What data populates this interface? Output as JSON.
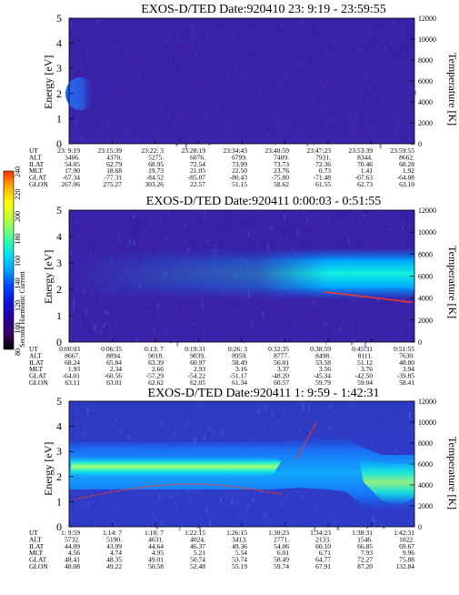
{
  "colorbar": {
    "label": "Second Harmonic Current",
    "ticks": [
      "80",
      "100",
      "120",
      "140",
      "160",
      "180",
      "200",
      "220",
      "240"
    ],
    "colors": [
      "#000000",
      "#3a0060",
      "#2a0098",
      "#1010d0",
      "#0040ff",
      "#00a0ff",
      "#00e0f0",
      "#40ffa0",
      "#b0ff40",
      "#ffff00",
      "#ffb000",
      "#ff3000"
    ]
  },
  "chart_data": [
    {
      "type": "heatmap",
      "title": "EXOS-D/TED   Date:920410  23: 9:19 - 23:59:55",
      "ylabel": "Energy [eV]",
      "y2label": "Temperature [K]",
      "ylim": [
        0,
        5
      ],
      "y2lim": [
        0,
        12000
      ],
      "yticks": [
        "0",
        "1",
        "2",
        "3",
        "4",
        "5"
      ],
      "y2ticks": [
        "0",
        "2000",
        "4000",
        "6000",
        "8000",
        "10000",
        "12000"
      ],
      "row_labels": [
        "UT",
        "ALT",
        "ILAT",
        "MLT",
        "GLAT",
        "GLON"
      ],
      "columns": [
        [
          "23: 9:19",
          "3406.",
          "54.05",
          "17.90",
          "-67.34",
          "267.06"
        ],
        [
          "23:15:39",
          "4370.",
          "62.79",
          "18.68",
          "-77.31",
          "275.27"
        ],
        [
          "23:22: 3",
          "5275.",
          "68.95",
          "19.73",
          "-84.52",
          "303.26"
        ],
        [
          "23:28:19",
          "6076.",
          "72.54",
          "21.05",
          "-85.07",
          "22.57"
        ],
        [
          "23:34:43",
          "6799.",
          "73.99",
          "22.50",
          "-80.43",
          "51.15"
        ],
        [
          "23:40:59",
          "7409.",
          "73.73",
          "23.76",
          "-75.80",
          "58.62"
        ],
        [
          "23:47:23",
          "7931.",
          "72.36",
          "0.73",
          "-71.48",
          "61.55"
        ],
        [
          "23:53:39",
          "8344.",
          "70.46",
          "1.41",
          "-67.63",
          "62.73"
        ],
        [
          "23:59:55",
          "8662.",
          "68.28",
          "1.92",
          "-64.08",
          "63.10"
        ]
      ]
    },
    {
      "type": "heatmap",
      "title": "EXOS-D/TED   Date:920411  0:00:03 - 0:51:55",
      "ylabel": "Energy [eV]",
      "y2label": "Temperature [K]",
      "ylim": [
        0,
        5
      ],
      "y2lim": [
        0,
        12000
      ],
      "yticks": [
        "0",
        "1",
        "2",
        "3",
        "4",
        "5"
      ],
      "y2ticks": [
        "0",
        "2000",
        "4000",
        "6000",
        "8000",
        "10000",
        "12000"
      ],
      "row_labels": [
        "UT",
        "ALT",
        "ILAT",
        "MLT",
        "GLAT",
        "GLON"
      ],
      "columns": [
        [
          "0:00:03",
          "8667.",
          "68.24",
          "1.93",
          "-64.01",
          "63.11"
        ],
        [
          "0:06:35",
          "8894.",
          "65.84",
          "2.34",
          "-60.56",
          "63.01"
        ],
        [
          "0:13: 7",
          "9018.",
          "63.39",
          "2.66",
          "-57.29",
          "62.62"
        ],
        [
          "0:19:31",
          "9039.",
          "60.97",
          "2.93",
          "-54.22",
          "62.05"
        ],
        [
          "0:26: 3",
          "8959.",
          "58.49",
          "3.16",
          "-51.17",
          "61.34"
        ],
        [
          "0:32:35",
          "8777.",
          "56.01",
          "3.37",
          "-48.20",
          "60.57"
        ],
        [
          "0:38:59",
          "8498.",
          "53.58",
          "3.56",
          "-45.34",
          "59.79"
        ],
        [
          "0:45:31",
          "8111.",
          "51.12",
          "3.76",
          "-42.50",
          "59.04"
        ],
        [
          "0:51:55",
          "7630.",
          "48.80",
          "3.94",
          "-39.85",
          "58.41"
        ]
      ]
    },
    {
      "type": "heatmap",
      "title": "EXOS-D/TED   Date:920411  1: 9:59 - 1:42:31",
      "ylabel": "Energy [eV]",
      "y2label": "Temperature [K]",
      "ylim": [
        0,
        5
      ],
      "y2lim": [
        0,
        12000
      ],
      "yticks": [
        "0",
        "1",
        "2",
        "3",
        "4",
        "5"
      ],
      "y2ticks": [
        "0",
        "2000",
        "4000",
        "6000",
        "8000",
        "10000",
        "12000"
      ],
      "row_labels": [
        "UT",
        "ALT",
        "ILAT",
        "MLT",
        "GLAT",
        "GLON"
      ],
      "columns": [
        [
          "1: 9:59",
          "5732.",
          "44.09",
          "4.56",
          "48.41",
          "48.08"
        ],
        [
          "1:14: 7",
          "5190.",
          "43.99",
          "4.74",
          "48.35",
          "49.22"
        ],
        [
          "1:18: 7",
          "4631.",
          "44.64",
          "4.95",
          "49.01",
          "50.58"
        ],
        [
          "1:22:15",
          "4024.",
          "46.37",
          "5.21",
          "50.74",
          "52.48"
        ],
        [
          "1:26:15",
          "3413.",
          "49.36",
          "5.54",
          "53.74",
          "55.19"
        ],
        [
          "1:30:23",
          "2771.",
          "54.06",
          "6.01",
          "58.49",
          "59.74"
        ],
        [
          "1:34:23",
          "2133.",
          "60.10",
          "6.71",
          "64.77",
          "67.91"
        ],
        [
          "1:38:31",
          "1546.",
          "66.85",
          "7.93",
          "72.27",
          "87.20"
        ],
        [
          "1:42:31",
          "1022.",
          "69.67",
          "9.96",
          "75.88",
          "132.84"
        ]
      ]
    }
  ]
}
